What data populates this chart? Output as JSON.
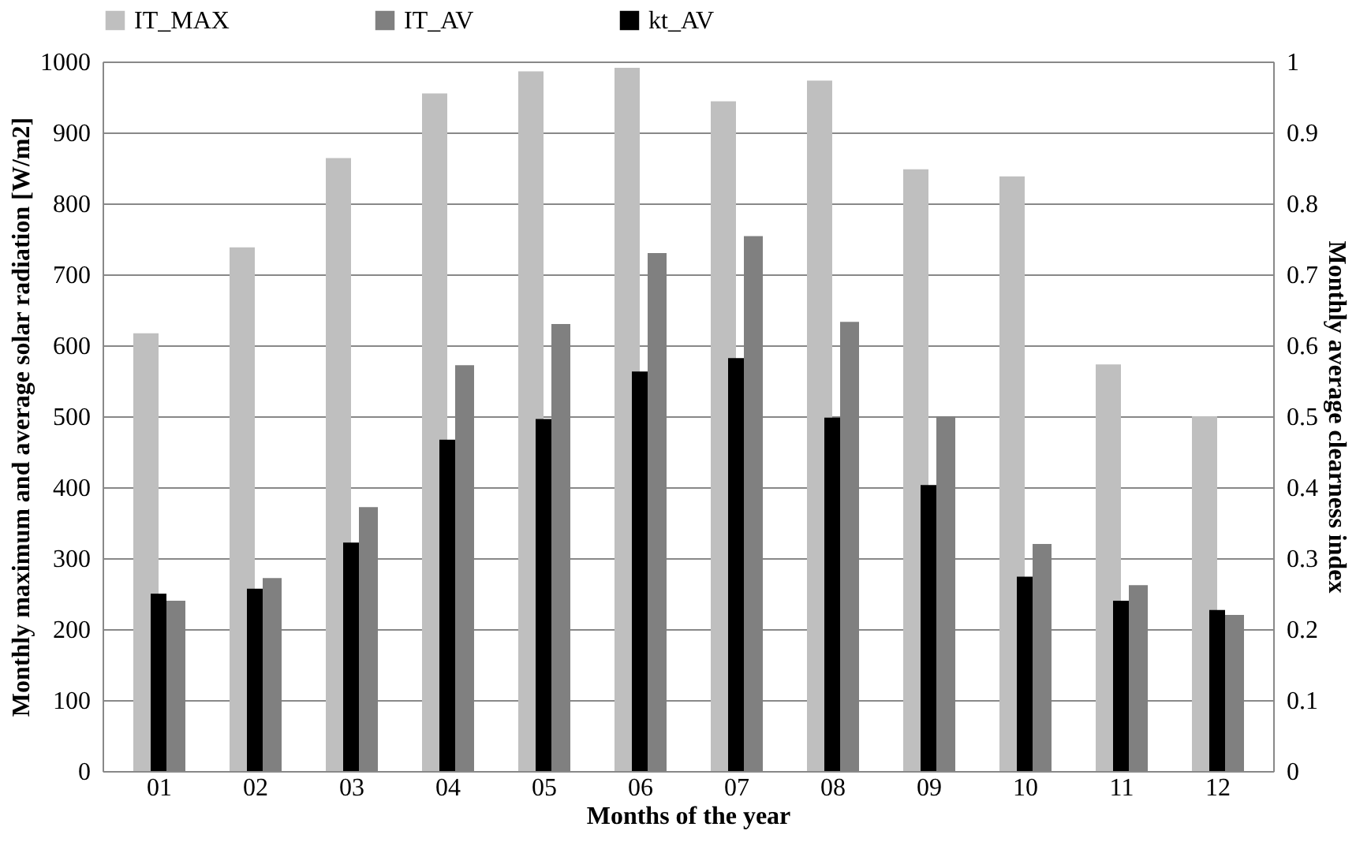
{
  "chart_data": {
    "type": "bar",
    "xlabel": "Months of the year",
    "ylabel": "Monthly maximum and average solar radiation [W/m2]",
    "y2label": "Monthly average clearness index",
    "categories": [
      "01",
      "02",
      "03",
      "04",
      "05",
      "06",
      "07",
      "08",
      "09",
      "10",
      "11",
      "12"
    ],
    "series": [
      {
        "name": "IT_MAX",
        "color": "#bfbfbf",
        "values": [
          617,
          738,
          864,
          955,
          986,
          991,
          944,
          973,
          848,
          838,
          573,
          500
        ]
      },
      {
        "name": "IT_AV",
        "color": "#808080",
        "values": [
          240,
          272,
          372,
          572,
          630,
          730,
          754,
          633,
          500,
          320,
          262,
          220
        ]
      },
      {
        "name": "kt_AV",
        "color": "#000000",
        "axis": "y2",
        "values": [
          0.25,
          0.257,
          0.322,
          0.467,
          0.496,
          0.563,
          0.582,
          0.498,
          0.403,
          0.274,
          0.24,
          0.227
        ]
      }
    ],
    "ylim": [
      0,
      1000
    ],
    "yticks": [
      0,
      100,
      200,
      300,
      400,
      500,
      600,
      700,
      800,
      900,
      1000
    ],
    "y2lim": [
      0,
      1
    ],
    "y2ticks": [
      0,
      0.1,
      0.2,
      0.3,
      0.4,
      0.5,
      0.6,
      0.7,
      0.8,
      0.9,
      1
    ],
    "grid": "y",
    "legend": "top"
  }
}
